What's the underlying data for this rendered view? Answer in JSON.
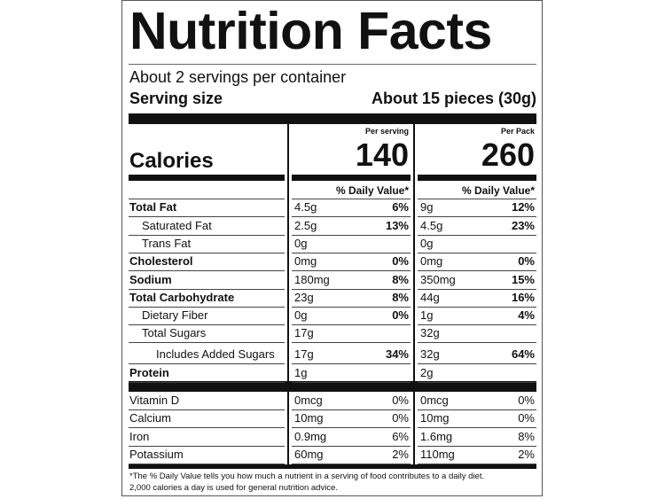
{
  "header": {
    "title": "Nutrition Facts",
    "servings": "About 2 servings per container",
    "serving_size_label": "Serving size",
    "serving_size": "About 15 pieces (30g)"
  },
  "calories": {
    "label": "Calories",
    "columns": [
      {
        "heading": "Per serving",
        "value": "140"
      },
      {
        "heading": "Per Pack",
        "value": "260"
      }
    ],
    "dv_heading": "% Daily Value*"
  },
  "nutrients": [
    {
      "name": "Total Fat",
      "bold": true,
      "indent": 0,
      "serving": {
        "amount": "4.5g",
        "dv": "6%"
      },
      "pack": {
        "amount": "9g",
        "dv": "12%"
      }
    },
    {
      "name": "Saturated Fat",
      "bold": false,
      "indent": 1,
      "serving": {
        "amount": "2.5g",
        "dv": "13%"
      },
      "pack": {
        "amount": "4.5g",
        "dv": "23%"
      }
    },
    {
      "name": "Trans Fat",
      "bold": false,
      "indent": 1,
      "serving": {
        "amount": "0g"
      },
      "pack": {
        "amount": "0g"
      }
    },
    {
      "name": "Cholesterol",
      "bold": true,
      "indent": 0,
      "serving": {
        "amount": "0mg",
        "dv": "0%"
      },
      "pack": {
        "amount": "0mg",
        "dv": "0%"
      }
    },
    {
      "name": "Sodium",
      "bold": true,
      "indent": 0,
      "serving": {
        "amount": "180mg",
        "dv": "8%"
      },
      "pack": {
        "amount": "350mg",
        "dv": "15%"
      }
    },
    {
      "name": "Total Carbohydrate",
      "bold": true,
      "indent": 0,
      "serving": {
        "amount": "23g",
        "dv": "8%"
      },
      "pack": {
        "amount": "44g",
        "dv": "16%"
      }
    },
    {
      "name": "Dietary Fiber",
      "bold": false,
      "indent": 1,
      "serving": {
        "amount": "0g",
        "dv": "0%"
      },
      "pack": {
        "amount": "1g",
        "dv": "4%"
      }
    },
    {
      "name": "Total Sugars",
      "bold": false,
      "indent": 1,
      "serving": {
        "amount": "17g"
      },
      "pack": {
        "amount": "32g"
      }
    },
    {
      "name": "Includes Added Sugars",
      "bold": false,
      "indent": 2,
      "serving": {
        "amount": "17g",
        "dv": "34%"
      },
      "pack": {
        "amount": "32g",
        "dv": "64%"
      }
    },
    {
      "name": "Protein",
      "bold": true,
      "indent": 0,
      "serving": {
        "amount": "1g"
      },
      "pack": {
        "amount": "2g"
      }
    }
  ],
  "vitamins": [
    {
      "name": "Vitamin D",
      "serving": {
        "amount": "0mcg",
        "dv": "0%"
      },
      "pack": {
        "amount": "0mcg",
        "dv": "0%"
      }
    },
    {
      "name": "Calcium",
      "serving": {
        "amount": "10mg",
        "dv": "0%"
      },
      "pack": {
        "amount": "10mg",
        "dv": "0%"
      }
    },
    {
      "name": "Iron",
      "serving": {
        "amount": "0.9mg",
        "dv": "6%"
      },
      "pack": {
        "amount": "1.6mg",
        "dv": "8%"
      }
    },
    {
      "name": "Potassium",
      "serving": {
        "amount": "60mg",
        "dv": "2%"
      },
      "pack": {
        "amount": "110mg",
        "dv": "2%"
      }
    }
  ],
  "footnote": [
    "*The % Daily Value tells you how much a nutrient in a serving of food contributes to a daily diet.",
    "2,000 calories a day is used for general nutrition advice."
  ]
}
